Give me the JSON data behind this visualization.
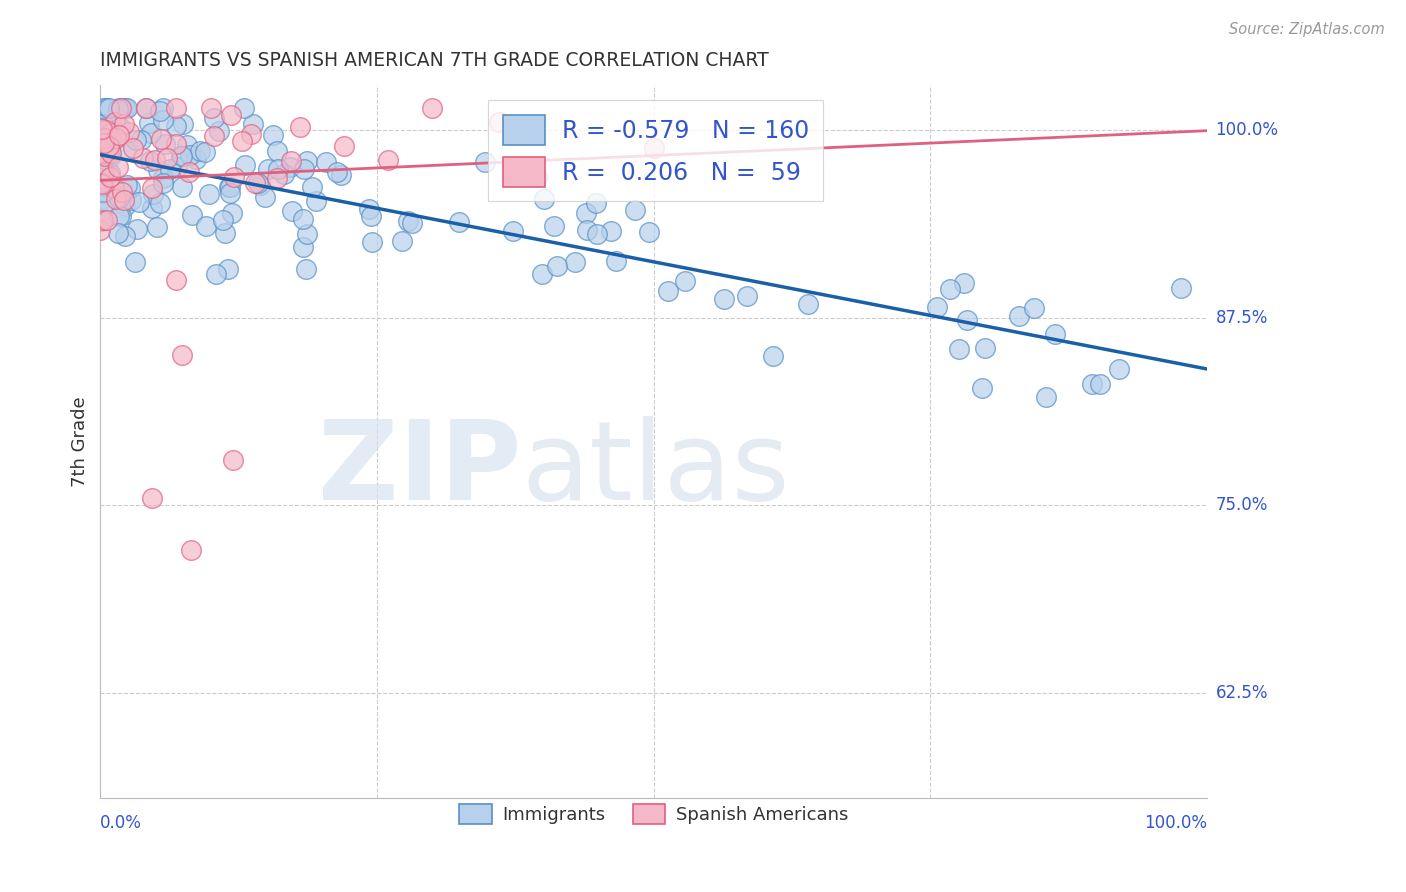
{
  "title": "IMMIGRANTS VS SPANISH AMERICAN 7TH GRADE CORRELATION CHART",
  "source": "Source: ZipAtlas.com",
  "ylabel": "7th Grade",
  "ytick_labels": [
    "100.0%",
    "87.5%",
    "75.0%",
    "62.5%"
  ],
  "ytick_values": [
    1.0,
    0.875,
    0.75,
    0.625
  ],
  "xlim": [
    0.0,
    1.0
  ],
  "ylim": [
    0.555,
    1.03
  ],
  "legend_blue_r": "-0.579",
  "legend_blue_n": "160",
  "legend_pink_r": "0.206",
  "legend_pink_n": "59",
  "blue_scatter_color": "#b8d0eb",
  "blue_edge_color": "#5590c8",
  "pink_scatter_color": "#f5b8c8",
  "pink_edge_color": "#e06080",
  "blue_line_color": "#1a5fa8",
  "pink_line_color": "#e06080",
  "legend_text_color": "#3355cc",
  "title_color": "#333333",
  "grid_color": "#cccccc",
  "background_color": "#ffffff",
  "watermark_zip": "ZIP",
  "watermark_atlas": "atlas",
  "source_color": "#999999",
  "right_label_color": "#3355cc"
}
